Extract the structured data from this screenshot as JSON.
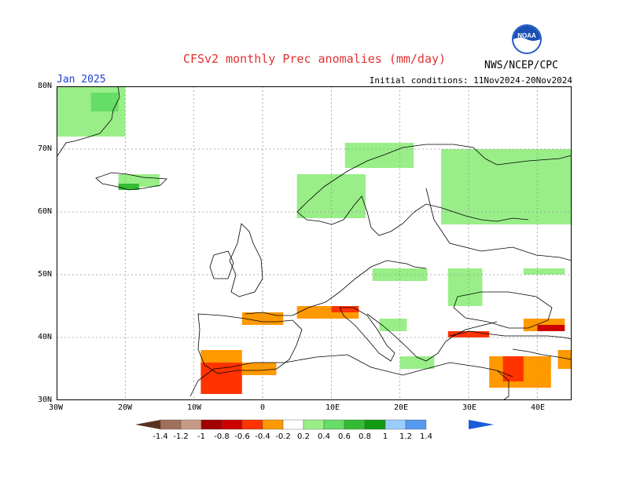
{
  "header": {
    "title": "CFSv2 monthly Prec anomalies (mm/day)",
    "month": "Jan 2025",
    "initial_conditions": "Initial conditions: 11Nov2024-20Nov2024",
    "agency": "NWS/NCEP/CPC",
    "logo_text": "NOAA"
  },
  "axes": {
    "lat_labels": [
      "80N",
      "70N",
      "60N",
      "50N",
      "40N",
      "30N"
    ],
    "lon_labels": [
      "30W",
      "20W",
      "10W",
      "0",
      "10E",
      "20E",
      "30E",
      "40E"
    ]
  },
  "colorbar": {
    "labels": [
      "-1.4",
      "-1.2",
      "-1",
      "-0.8",
      "-0.6",
      "-0.4",
      "-0.2",
      "0.2",
      "0.4",
      "0.6",
      "0.8",
      "1",
      "1.2",
      "1.4"
    ],
    "colors": [
      "#6b3a2a",
      "#a0705a",
      "#c89a86",
      "#a00000",
      "#cc0000",
      "#ff3300",
      "#ff9900",
      "#ffffff",
      "#99ee88",
      "#66dd66",
      "#33bb33",
      "#119911",
      "#99ccff",
      "#5599ee",
      "#2266dd"
    ]
  },
  "map": {
    "extent": {
      "lon": [
        -30,
        45
      ],
      "lat": [
        30,
        80
      ]
    },
    "anomaly_regions": [
      {
        "name": "greenland-wet",
        "lon": [
          -30,
          -20
        ],
        "lat": [
          72,
          80
        ],
        "color": "#99ee88"
      },
      {
        "name": "greenland-core",
        "lon": [
          -25,
          -21
        ],
        "lat": [
          76,
          79
        ],
        "color": "#66dd66"
      },
      {
        "name": "iceland-wet",
        "lon": [
          -21,
          -15
        ],
        "lat": [
          64,
          66
        ],
        "color": "#99ee88"
      },
      {
        "name": "iceland-core",
        "lon": [
          -21,
          -18
        ],
        "lat": [
          63.5,
          64.5
        ],
        "color": "#33bb33"
      },
      {
        "name": "norway-coast",
        "lon": [
          5,
          15
        ],
        "lat": [
          59,
          66
        ],
        "color": "#99ee88"
      },
      {
        "name": "norway-north",
        "lon": [
          12,
          22
        ],
        "lat": [
          67,
          71
        ],
        "color": "#99ee88"
      },
      {
        "name": "russia-west",
        "lon": [
          26,
          45
        ],
        "lat": [
          58,
          70
        ],
        "color": "#99ee88"
      },
      {
        "name": "russia-northwest",
        "lon": [
          33,
          45
        ],
        "lat": [
          63,
          68
        ],
        "color": "#99ee88"
      },
      {
        "name": "central-europe",
        "lon": [
          16,
          24
        ],
        "lat": [
          49,
          51
        ],
        "color": "#99ee88"
      },
      {
        "name": "ukraine",
        "lon": [
          27,
          32
        ],
        "lat": [
          45,
          51
        ],
        "color": "#99ee88"
      },
      {
        "name": "balkans",
        "lon": [
          17,
          21
        ],
        "lat": [
          41,
          43
        ],
        "color": "#99ee88"
      },
      {
        "name": "greece",
        "lon": [
          20,
          25
        ],
        "lat": [
          35,
          37
        ],
        "color": "#99ee88"
      },
      {
        "name": "caucasus-wet",
        "lon": [
          38,
          44
        ],
        "lat": [
          50,
          51
        ],
        "color": "#99ee88"
      },
      {
        "name": "alps-dry",
        "lon": [
          5,
          14
        ],
        "lat": [
          43,
          45
        ],
        "color": "#ff9900"
      },
      {
        "name": "alps-core",
        "lon": [
          10,
          14
        ],
        "lat": [
          44,
          45
        ],
        "color": "#ff3300"
      },
      {
        "name": "pyrenees-dry",
        "lon": [
          -3,
          3
        ],
        "lat": [
          42,
          44
        ],
        "color": "#ff9900"
      },
      {
        "name": "iberia-south-dry",
        "lon": [
          -9,
          -3
        ],
        "lat": [
          35,
          38
        ],
        "color": "#ff9900"
      },
      {
        "name": "morocco-dry",
        "lon": [
          -9,
          -3
        ],
        "lat": [
          31,
          36
        ],
        "color": "#ff3300"
      },
      {
        "name": "algeria-dry",
        "lon": [
          -3,
          2
        ],
        "lat": [
          34,
          36
        ],
        "color": "#ff9900"
      },
      {
        "name": "turkey-west-dry",
        "lon": [
          27,
          33
        ],
        "lat": [
          40,
          41
        ],
        "color": "#ff3300"
      },
      {
        "name": "levant-dry",
        "lon": [
          33,
          42
        ],
        "lat": [
          32,
          37
        ],
        "color": "#ff9900"
      },
      {
        "name": "levant-core",
        "lon": [
          35,
          38
        ],
        "lat": [
          33,
          37
        ],
        "color": "#ff3300"
      },
      {
        "name": "caucasus-dry",
        "lon": [
          38,
          44
        ],
        "lat": [
          41,
          43
        ],
        "color": "#ff9900"
      },
      {
        "name": "caucasus-core",
        "lon": [
          40,
          44
        ],
        "lat": [
          41,
          42
        ],
        "color": "#cc0000"
      },
      {
        "name": "iran-dry",
        "lon": [
          43,
          45
        ],
        "lat": [
          35,
          38
        ],
        "color": "#ff9900"
      }
    ]
  }
}
